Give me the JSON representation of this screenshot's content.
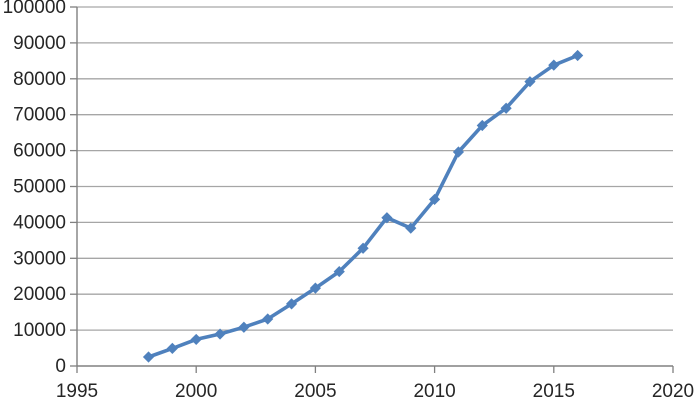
{
  "chart_data": {
    "type": "line",
    "title": "",
    "xlabel": "",
    "ylabel": "",
    "xlim": [
      1995,
      2020
    ],
    "ylim": [
      0,
      100000
    ],
    "x_ticks": [
      1995,
      2000,
      2005,
      2010,
      2015,
      2020
    ],
    "y_ticks": [
      0,
      10000,
      20000,
      30000,
      40000,
      50000,
      60000,
      70000,
      80000,
      90000,
      100000
    ],
    "grid": "horizontal",
    "legend_position": "none",
    "marker": "diamond",
    "series": [
      {
        "name": "series-1",
        "x": [
          1998,
          1999,
          2000,
          2001,
          2002,
          2003,
          2004,
          2005,
          2006,
          2007,
          2008,
          2009,
          2010,
          2011,
          2012,
          2013,
          2014,
          2015,
          2016
        ],
        "values": [
          2500,
          4900,
          7400,
          8900,
          10800,
          13100,
          17300,
          21700,
          26300,
          32800,
          41300,
          38400,
          46400,
          59600,
          67000,
          71800,
          79200,
          83800,
          86500
        ]
      }
    ],
    "colors": {
      "series": "#4F81BD",
      "gridline": "#A6A6A6",
      "axis": "#808080",
      "tick": "#808080",
      "label": "#262626",
      "background": "#FFFFFF"
    }
  }
}
